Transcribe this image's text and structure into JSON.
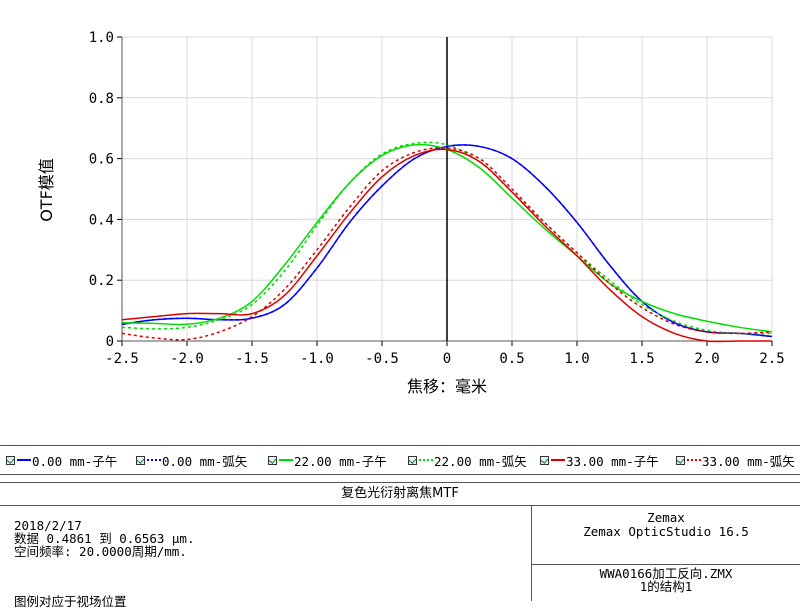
{
  "chart_data": {
    "type": "line",
    "xlabel": "焦移：毫米",
    "ylabel": "OTF模值",
    "xlim": [
      -2.5,
      2.5
    ],
    "ylim": [
      0,
      1.0
    ],
    "xticks": [
      "-2.5",
      "-2.0",
      "-1.5",
      "-1.0",
      "-0.5",
      "0",
      "0.5",
      "1.0",
      "1.5",
      "2.0",
      "2.5"
    ],
    "yticks": [
      "0",
      "0.2",
      "0.4",
      "0.6",
      "0.8",
      "1.0"
    ],
    "grid": true,
    "series": [
      {
        "name": "0.00 mm-子午",
        "color": "#0000ff",
        "dash": "solid",
        "x": [
          -2.5,
          -2.25,
          -2.0,
          -1.75,
          -1.5,
          -1.25,
          -1.0,
          -0.75,
          -0.5,
          -0.25,
          0,
          0.25,
          0.5,
          0.75,
          1.0,
          1.25,
          1.5,
          1.75,
          2.0,
          2.25,
          2.5
        ],
        "y": [
          0.055,
          0.07,
          0.075,
          0.07,
          0.075,
          0.12,
          0.24,
          0.39,
          0.51,
          0.6,
          0.64,
          0.64,
          0.6,
          0.51,
          0.39,
          0.25,
          0.13,
          0.06,
          0.03,
          0.025,
          0.015
        ]
      },
      {
        "name": "0.00 mm-弧矢",
        "color": "#0000ff",
        "dash": "dot",
        "x": [
          -2.5,
          -2.25,
          -2.0,
          -1.75,
          -1.5,
          -1.25,
          -1.0,
          -0.75,
          -0.5,
          -0.25,
          0,
          0.25,
          0.5,
          0.75,
          1.0,
          1.25,
          1.5,
          1.75,
          2.0,
          2.25,
          2.5
        ],
        "y": [
          0.055,
          0.07,
          0.075,
          0.07,
          0.075,
          0.12,
          0.24,
          0.39,
          0.51,
          0.6,
          0.64,
          0.64,
          0.6,
          0.51,
          0.39,
          0.25,
          0.13,
          0.06,
          0.03,
          0.025,
          0.015
        ]
      },
      {
        "name": "22.00 mm-子午",
        "color": "#00dd00",
        "dash": "solid",
        "x": [
          -2.5,
          -2.25,
          -2.0,
          -1.75,
          -1.5,
          -1.25,
          -1.0,
          -0.75,
          -0.5,
          -0.25,
          0,
          0.25,
          0.5,
          0.75,
          1.0,
          1.25,
          1.5,
          1.75,
          2.0,
          2.25,
          2.5
        ],
        "y": [
          0.06,
          0.058,
          0.055,
          0.075,
          0.13,
          0.25,
          0.39,
          0.52,
          0.61,
          0.645,
          0.63,
          0.57,
          0.47,
          0.37,
          0.28,
          0.19,
          0.13,
          0.09,
          0.065,
          0.045,
          0.03
        ]
      },
      {
        "name": "22.00 mm-弧矢",
        "color": "#00dd00",
        "dash": "dot",
        "x": [
          -2.5,
          -2.25,
          -2.0,
          -1.75,
          -1.5,
          -1.25,
          -1.0,
          -0.75,
          -0.5,
          -0.25,
          0,
          0.25,
          0.5,
          0.75,
          1.0,
          1.25,
          1.5,
          1.75,
          2.0,
          2.25,
          2.5
        ],
        "y": [
          0.045,
          0.04,
          0.045,
          0.07,
          0.12,
          0.23,
          0.38,
          0.52,
          0.615,
          0.65,
          0.645,
          0.59,
          0.49,
          0.39,
          0.29,
          0.2,
          0.12,
          0.065,
          0.035,
          0.025,
          0.025
        ]
      },
      {
        "name": "33.00 mm-子午",
        "color": "#dd0000",
        "dash": "solid",
        "x": [
          -2.5,
          -2.25,
          -2.0,
          -1.75,
          -1.5,
          -1.25,
          -1.0,
          -0.75,
          -0.5,
          -0.25,
          0,
          0.25,
          0.5,
          0.75,
          1.0,
          1.25,
          1.5,
          1.75,
          2.0,
          2.25,
          2.5
        ],
        "y": [
          0.07,
          0.08,
          0.09,
          0.09,
          0.09,
          0.15,
          0.28,
          0.42,
          0.54,
          0.61,
          0.63,
          0.59,
          0.49,
          0.38,
          0.28,
          0.17,
          0.08,
          0.025,
          0.0,
          0.0,
          0.0
        ]
      },
      {
        "name": "33.00 mm-弧矢",
        "color": "#dd0000",
        "dash": "dot",
        "x": [
          -2.5,
          -2.25,
          -2.0,
          -1.75,
          -1.5,
          -1.25,
          -1.0,
          -0.75,
          -0.5,
          -0.25,
          0,
          0.25,
          0.5,
          0.75,
          1.0,
          1.25,
          1.5,
          1.75,
          2.0,
          2.25,
          2.5
        ],
        "y": [
          0.025,
          0.01,
          0.005,
          0.03,
          0.08,
          0.17,
          0.3,
          0.44,
          0.56,
          0.62,
          0.635,
          0.6,
          0.5,
          0.39,
          0.29,
          0.19,
          0.11,
          0.055,
          0.03,
          0.025,
          0.03
        ]
      }
    ]
  },
  "legend": {
    "items": [
      {
        "label": "0.00 mm-子午",
        "color": "#0000ff",
        "dash": "solid"
      },
      {
        "label": "0.00 mm-弧矢",
        "color": "#0000ff",
        "dash": "dot"
      },
      {
        "label": "22.00 mm-子午",
        "color": "#00dd00",
        "dash": "solid"
      },
      {
        "label": "22.00 mm-弧矢",
        "color": "#00dd00",
        "dash": "dot"
      },
      {
        "label": "33.00 mm-子午",
        "color": "#dd0000",
        "dash": "solid"
      },
      {
        "label": "33.00 mm-弧矢",
        "color": "#dd0000",
        "dash": "dot"
      }
    ]
  },
  "info": {
    "title": "复色光衍射离焦MTF",
    "date": "2018/2/17",
    "data_line": "数据 0.4861 到 0.6563 μm.",
    "freq_line": "空间频率: 20.0000周期/mm.",
    "legend_note": "图例对应于视场位置",
    "vendor": "Zemax",
    "product": "Zemax OpticStudio 16.5",
    "file": "WWA0166加工反向.ZMX",
    "config": "1的结构1"
  }
}
